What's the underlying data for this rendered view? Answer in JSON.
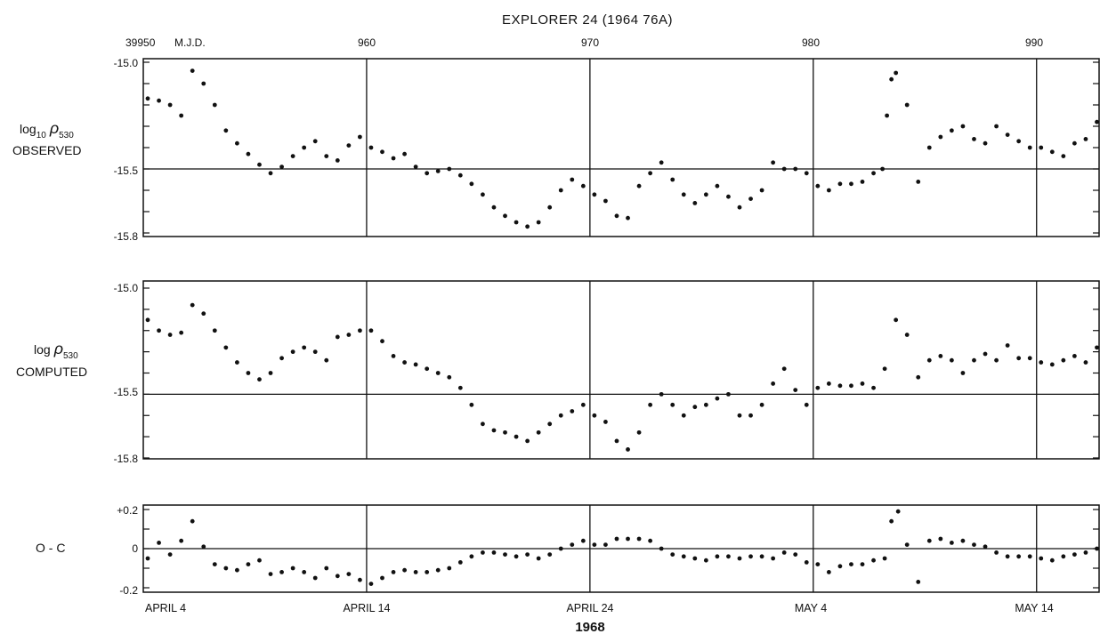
{
  "chart_data": {
    "type": "scatter",
    "title": "EXPLORER 24 (1964 76A)",
    "x_top_ticks": [
      "39950",
      "960",
      "970",
      "980",
      "990"
    ],
    "x_top_unit": "M.J.D.",
    "x_bottom_ticks": [
      "APRIL 4",
      "APRIL 14",
      "APRIL 24",
      "MAY 4",
      "MAY 14"
    ],
    "x_bottom_label": "1968",
    "xlim": [
      39950,
      39992.8
    ],
    "grid_x": [
      39960,
      39970,
      39980,
      39990
    ],
    "panels": [
      {
        "name": "observed",
        "ylabel_main": "log",
        "ylabel_sub": "10",
        "ylabel_rho": "ρ",
        "ylabel_rho_sub": "530",
        "ylabel_line2": "OBSERVED",
        "yticks": [
          "-15.0",
          "-15.5",
          "-15.8"
        ],
        "ylim": [
          -15.8,
          -15.0
        ],
        "ref_line": -15.5,
        "x": [
          39950.2,
          39950.7,
          39951.2,
          39951.7,
          39952.2,
          39952.7,
          39953.2,
          39953.7,
          39954.2,
          39954.7,
          39955.2,
          39955.7,
          39956.2,
          39956.7,
          39957.2,
          39957.7,
          39958.2,
          39958.7,
          39959.2,
          39959.7,
          39960.2,
          39960.7,
          39961.2,
          39961.7,
          39962.2,
          39962.7,
          39963.2,
          39963.7,
          39964.2,
          39964.7,
          39965.2,
          39965.7,
          39966.2,
          39966.7,
          39967.2,
          39967.7,
          39968.2,
          39968.7,
          39969.2,
          39969.7,
          39970.2,
          39970.7,
          39971.2,
          39971.7,
          39972.2,
          39972.7,
          39973.2,
          39973.7,
          39974.2,
          39974.7,
          39975.2,
          39975.7,
          39976.2,
          39976.7,
          39977.2,
          39977.7,
          39978.2,
          39978.7,
          39979.2,
          39979.7,
          39980.2,
          39980.7,
          39981.2,
          39981.7,
          39982.2,
          39982.7,
          39983.1,
          39983.3,
          39983.5,
          39983.7,
          39984.2,
          39984.7,
          39985.2,
          39985.7,
          39986.2,
          39986.7,
          39987.2,
          39987.7,
          39988.2,
          39988.7,
          39989.2,
          39989.7,
          39990.2,
          39990.7,
          39991.2,
          39991.7,
          39992.2,
          39992.7
        ],
        "y": [
          -15.17,
          -15.18,
          -15.2,
          -15.25,
          -15.04,
          -15.1,
          -15.2,
          -15.32,
          -15.38,
          -15.43,
          -15.48,
          -15.52,
          -15.49,
          -15.44,
          -15.4,
          -15.37,
          -15.44,
          -15.46,
          -15.39,
          -15.35,
          -15.4,
          -15.42,
          -15.45,
          -15.43,
          -15.49,
          -15.52,
          -15.51,
          -15.5,
          -15.53,
          -15.57,
          -15.62,
          -15.68,
          -15.72,
          -15.75,
          -15.77,
          -15.75,
          -15.68,
          -15.6,
          -15.55,
          -15.58,
          -15.62,
          -15.65,
          -15.72,
          -15.73,
          -15.58,
          -15.52,
          -15.47,
          -15.55,
          -15.62,
          -15.66,
          -15.62,
          -15.58,
          -15.63,
          -15.68,
          -15.64,
          -15.6,
          -15.47,
          -15.5,
          -15.5,
          -15.52,
          -15.58,
          -15.6,
          -15.57,
          -15.57,
          -15.56,
          -15.52,
          -15.5,
          -15.25,
          -15.08,
          -15.05,
          -15.2,
          -15.56,
          -15.4,
          -15.35,
          -15.32,
          -15.3,
          -15.36,
          -15.38,
          -15.3,
          -15.34,
          -15.37,
          -15.4,
          -15.4,
          -15.42,
          -15.44,
          -15.38,
          -15.36,
          -15.28
        ]
      },
      {
        "name": "computed",
        "ylabel_main": "log",
        "ylabel_sub": "",
        "ylabel_rho": "ρ",
        "ylabel_rho_sub": "530",
        "ylabel_line2": "COMPUTED",
        "yticks": [
          "-15.0",
          "-15.5",
          "-15.8"
        ],
        "ylim": [
          -15.8,
          -15.0
        ],
        "ref_line": -15.5,
        "x": [
          39950.2,
          39950.7,
          39951.2,
          39951.7,
          39952.2,
          39952.7,
          39953.2,
          39953.7,
          39954.2,
          39954.7,
          39955.2,
          39955.7,
          39956.2,
          39956.7,
          39957.2,
          39957.7,
          39958.2,
          39958.7,
          39959.2,
          39959.7,
          39960.2,
          39960.7,
          39961.2,
          39961.7,
          39962.2,
          39962.7,
          39963.2,
          39963.7,
          39964.2,
          39964.7,
          39965.2,
          39965.7,
          39966.2,
          39966.7,
          39967.2,
          39967.7,
          39968.2,
          39968.7,
          39969.2,
          39969.7,
          39970.2,
          39970.7,
          39971.2,
          39971.7,
          39972.2,
          39972.7,
          39973.2,
          39973.7,
          39974.2,
          39974.7,
          39975.2,
          39975.7,
          39976.2,
          39976.7,
          39977.2,
          39977.7,
          39978.2,
          39978.7,
          39979.2,
          39979.7,
          39980.2,
          39980.7,
          39981.2,
          39981.7,
          39982.2,
          39982.7,
          39983.2,
          39983.7,
          39984.2,
          39984.7,
          39985.2,
          39985.7,
          39986.2,
          39986.7,
          39987.2,
          39987.7,
          39988.2,
          39988.7,
          39989.2,
          39989.7,
          39990.2,
          39990.7,
          39991.2,
          39991.7,
          39992.2,
          39992.7
        ],
        "y": [
          -15.15,
          -15.2,
          -15.22,
          -15.21,
          -15.08,
          -15.12,
          -15.2,
          -15.28,
          -15.35,
          -15.4,
          -15.43,
          -15.4,
          -15.33,
          -15.3,
          -15.28,
          -15.3,
          -15.34,
          -15.23,
          -15.22,
          -15.2,
          -15.2,
          -15.25,
          -15.32,
          -15.35,
          -15.36,
          -15.38,
          -15.4,
          -15.42,
          -15.47,
          -15.55,
          -15.64,
          -15.67,
          -15.68,
          -15.7,
          -15.72,
          -15.68,
          -15.64,
          -15.6,
          -15.58,
          -15.55,
          -15.6,
          -15.63,
          -15.72,
          -15.76,
          -15.68,
          -15.55,
          -15.5,
          -15.55,
          -15.6,
          -15.56,
          -15.55,
          -15.52,
          -15.5,
          -15.6,
          -15.6,
          -15.55,
          -15.45,
          -15.38,
          -15.48,
          -15.55,
          -15.47,
          -15.45,
          -15.46,
          -15.46,
          -15.45,
          -15.47,
          -15.38,
          -15.15,
          -15.22,
          -15.42,
          -15.34,
          -15.32,
          -15.34,
          -15.4,
          -15.34,
          -15.31,
          -15.34,
          -15.27,
          -15.33,
          -15.33,
          -15.35,
          -15.36,
          -15.34,
          -15.32,
          -15.35,
          -15.28
        ]
      },
      {
        "name": "o-c",
        "ylabel_main": "O - C",
        "ylabel_sub": "",
        "ylabel_rho": "",
        "ylabel_rho_sub": "",
        "ylabel_line2": "",
        "yticks": [
          "+0.2",
          "0",
          "-0.2"
        ],
        "ylim": [
          -0.2,
          0.2
        ],
        "ref_line": 0,
        "x": [
          39950.2,
          39950.7,
          39951.2,
          39951.7,
          39952.2,
          39952.7,
          39953.2,
          39953.7,
          39954.2,
          39954.7,
          39955.2,
          39955.7,
          39956.2,
          39956.7,
          39957.2,
          39957.7,
          39958.2,
          39958.7,
          39959.2,
          39959.7,
          39960.2,
          39960.7,
          39961.2,
          39961.7,
          39962.2,
          39962.7,
          39963.2,
          39963.7,
          39964.2,
          39964.7,
          39965.2,
          39965.7,
          39966.2,
          39966.7,
          39967.2,
          39967.7,
          39968.2,
          39968.7,
          39969.2,
          39969.7,
          39970.2,
          39970.7,
          39971.2,
          39971.7,
          39972.2,
          39972.7,
          39973.2,
          39973.7,
          39974.2,
          39974.7,
          39975.2,
          39975.7,
          39976.2,
          39976.7,
          39977.2,
          39977.7,
          39978.2,
          39978.7,
          39979.2,
          39979.7,
          39980.2,
          39980.7,
          39981.2,
          39981.7,
          39982.2,
          39982.7,
          39983.2,
          39983.5,
          39983.8,
          39984.2,
          39984.7,
          39985.2,
          39985.7,
          39986.2,
          39986.7,
          39987.2,
          39987.7,
          39988.2,
          39988.7,
          39989.2,
          39989.7,
          39990.2,
          39990.7,
          39991.2,
          39991.7,
          39992.2,
          39992.7
        ],
        "y": [
          -0.05,
          0.03,
          -0.03,
          0.04,
          0.14,
          0.01,
          -0.08,
          -0.1,
          -0.11,
          -0.08,
          -0.06,
          -0.13,
          -0.12,
          -0.1,
          -0.12,
          -0.15,
          -0.1,
          -0.14,
          -0.13,
          -0.16,
          -0.18,
          -0.15,
          -0.12,
          -0.11,
          -0.12,
          -0.12,
          -0.11,
          -0.1,
          -0.07,
          -0.04,
          -0.02,
          -0.02,
          -0.03,
          -0.04,
          -0.03,
          -0.05,
          -0.03,
          0.0,
          0.02,
          0.04,
          0.02,
          0.02,
          0.05,
          0.05,
          0.05,
          0.04,
          0.0,
          -0.03,
          -0.04,
          -0.05,
          -0.06,
          -0.04,
          -0.04,
          -0.05,
          -0.04,
          -0.04,
          -0.05,
          -0.02,
          -0.03,
          -0.07,
          -0.08,
          -0.12,
          -0.09,
          -0.08,
          -0.08,
          -0.06,
          -0.05,
          0.14,
          0.19,
          0.02,
          -0.17,
          0.04,
          0.05,
          0.03,
          0.04,
          0.02,
          0.01,
          -0.02,
          -0.04,
          -0.04,
          -0.04,
          -0.05,
          -0.06,
          -0.04,
          -0.03,
          -0.02,
          0.0
        ]
      }
    ]
  }
}
